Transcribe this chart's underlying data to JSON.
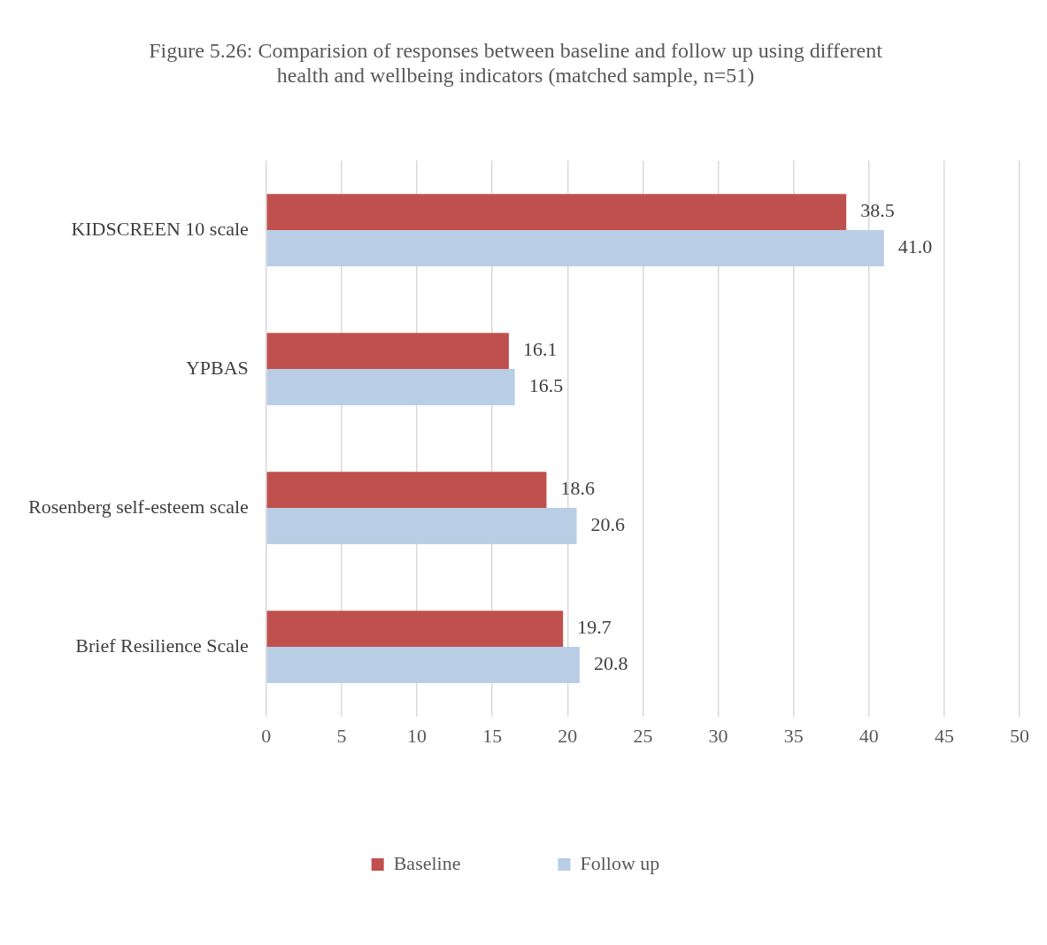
{
  "chart_data": {
    "type": "bar",
    "orientation": "horizontal",
    "title": "Figure 5.26: Comparision of responses between baseline and follow up using different health and wellbeing indicators (matched sample, n=51)",
    "categories": [
      "KIDSCREEN 10 scale",
      "YPBAS",
      "Rosenberg self-esteem scale",
      "Brief Resilience Scale"
    ],
    "series": [
      {
        "name": "Baseline",
        "color": "#c0504d",
        "values": [
          38.5,
          16.1,
          18.6,
          19.7
        ],
        "value_labels": [
          "38.5",
          "16.1",
          "18.6",
          "19.7"
        ]
      },
      {
        "name": "Follow up",
        "color": "#b9cde5",
        "values": [
          41.0,
          16.5,
          20.6,
          20.8
        ],
        "value_labels": [
          "41.0",
          "16.5",
          "20.6",
          "20.8"
        ]
      }
    ],
    "xlim": [
      0,
      50
    ],
    "xticks": [
      0,
      5,
      10,
      15,
      20,
      25,
      30,
      35,
      40,
      45,
      50
    ],
    "grid": "x",
    "legend": "bottom"
  }
}
